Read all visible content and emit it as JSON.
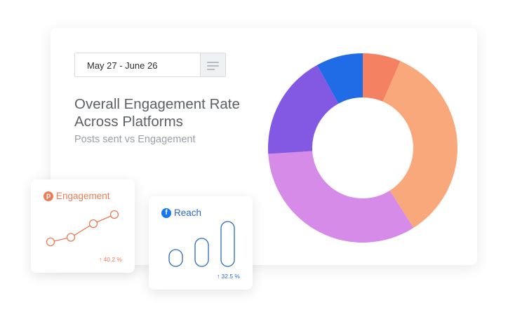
{
  "date_range": {
    "label": "May 27 - June 26"
  },
  "header": {
    "title": "Overall Engagement Rate Across Platforms",
    "subtitle": "Posts sent vs Engagement"
  },
  "icons": {
    "filter": "menu-lines-icon",
    "engagement": "pinterest-icon",
    "reach": "facebook-icon",
    "trend": "arrow-up-icon"
  },
  "chart_data": {
    "type": "pie",
    "categories": [
      "",
      "",
      "",
      "",
      ""
    ],
    "values": [
      6.5,
      34.5,
      33,
      18,
      8
    ],
    "colors": [
      "#f48161",
      "#f9a87b",
      "#d68be8",
      "#8359e3",
      "#1f6ce6"
    ]
  },
  "cards": {
    "engagement": {
      "title": "Engagement",
      "change": "40.2 %",
      "color": "#ee7b55",
      "points": [
        1,
        2,
        5,
        7
      ]
    },
    "reach": {
      "title": "Reach",
      "change": "32.5 %",
      "color": "#2a67c6",
      "bars": [
        3,
        5,
        8
      ]
    }
  }
}
